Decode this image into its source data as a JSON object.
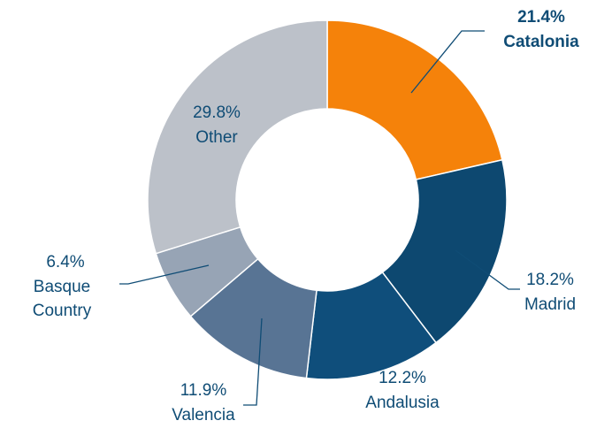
{
  "chart_data": {
    "type": "donut",
    "categories": [
      "Catalonia",
      "Madrid",
      "Andalusia",
      "Valencia",
      "Basque Country",
      "Other"
    ],
    "values": [
      21.4,
      18.2,
      12.2,
      11.9,
      6.4,
      29.8
    ],
    "value_labels": [
      "21.4%",
      "18.2%",
      "12.2%",
      "11.9%",
      "6.4%",
      "29.8%"
    ],
    "colors": [
      "#f5820a",
      "#0d4870",
      "#0f4e7b",
      "#587494",
      "#97a4b5",
      "#bcc1c9"
    ]
  }
}
